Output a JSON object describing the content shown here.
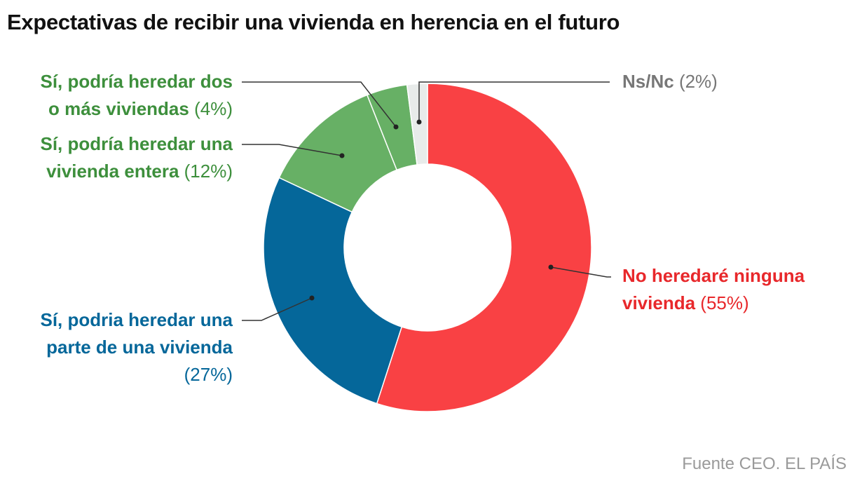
{
  "chart_data": {
    "type": "pie",
    "title": "Expectativas de recibir una vivienda en herencia en el futuro",
    "source": "Fuente CEO. EL PAÍS",
    "slices": [
      {
        "id": "no",
        "label": "No heredaré ninguna vivienda",
        "label_lines": [
          "No heredaré ninguna",
          "vivienda"
        ],
        "value": 55,
        "value_text": "(55%)",
        "color": "#f94144",
        "text_color": "#e8282b"
      },
      {
        "id": "parte",
        "label": "Sí, podria heredar una parte de una vivienda",
        "label_lines": [
          "Sí, podria heredar una",
          "parte de una vivienda"
        ],
        "value": 27,
        "value_text": "(27%)",
        "color": "#05679a",
        "text_color": "#05679a"
      },
      {
        "id": "entera",
        "label": "Sí, podría heredar una vivienda entera",
        "label_lines": [
          "Sí, podría heredar una",
          "vivienda entera"
        ],
        "value": 12,
        "value_text": "(12%)",
        "color": "#67b065",
        "text_color": "#3d8f3c"
      },
      {
        "id": "dos",
        "label": "Sí, podría heredar dos o más viviendas",
        "label_lines": [
          "Sí, podría heredar dos",
          "o más viviendas"
        ],
        "value": 4,
        "value_text": "(4%)",
        "color": "#67b065",
        "text_color": "#3d8f3c"
      },
      {
        "id": "nsnc",
        "label": "Ns/Nc",
        "label_lines": [
          "Ns/Nc"
        ],
        "value": 2,
        "value_text": "(2%)",
        "color": "#e8ebea",
        "text_color": "#777777"
      }
    ]
  }
}
